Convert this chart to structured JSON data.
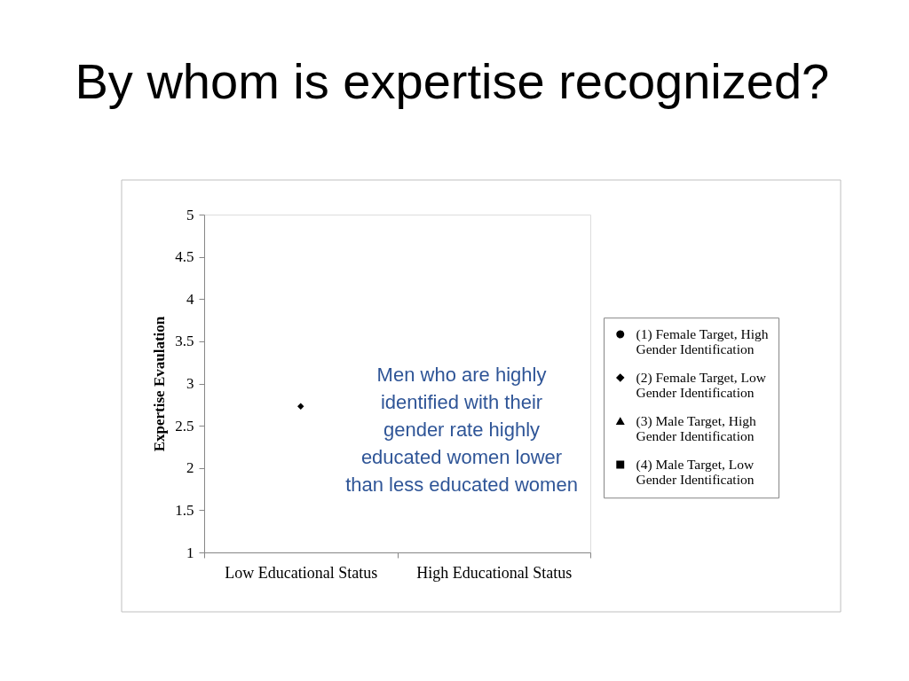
{
  "chart_data": {
    "type": "line",
    "title": "By whom is expertise recognized?",
    "ylabel": "Expertise Evaulation",
    "categories": [
      "Low Educational Status",
      "High Educational Status"
    ],
    "series": [
      {
        "name": "(1) Female Target, High Gender Identification",
        "color": "#000000",
        "marker": "circle",
        "values": [
          null,
          null
        ]
      },
      {
        "name": "(2) Female Target, Low Gender Identification",
        "color": "#000000",
        "marker": "diamond",
        "values": [
          2.73,
          null
        ]
      },
      {
        "name": "(3) Male Target, High Gender Identification",
        "color": "#000000",
        "marker": "triangle",
        "values": [
          null,
          null
        ]
      },
      {
        "name": "(4) Male Target, Low Gender Identification",
        "color": "#000000",
        "marker": "square",
        "values": [
          null,
          null
        ]
      }
    ],
    "ylim": [
      1,
      5
    ],
    "yticks": [
      1,
      1.5,
      2,
      2.5,
      3,
      3.5,
      4,
      4.5,
      5
    ],
    "legend": "right",
    "annotations": [
      "Men who are highly identified with their gender rate highly educated women lower than less educated women"
    ]
  }
}
